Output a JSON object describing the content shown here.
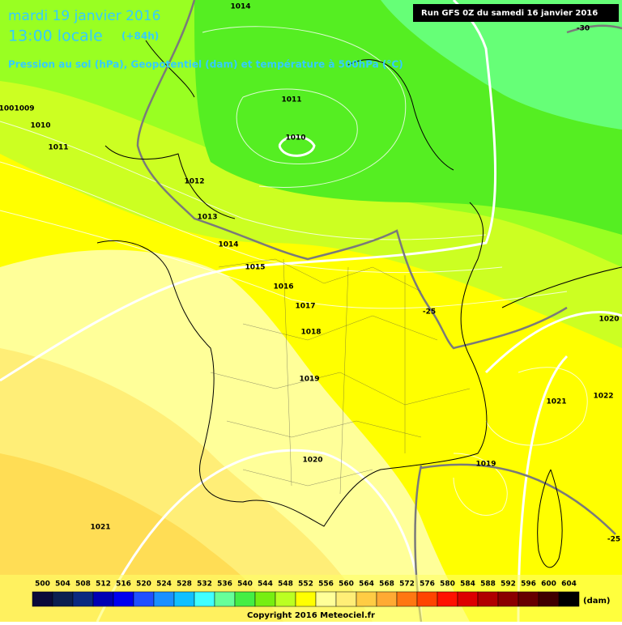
{
  "header": {
    "date": "mardi 19 janvier 2016",
    "time": "13:00 locale",
    "lead": "(+84h)",
    "subtitle": "Pression au sol (hPa), Geopotentiel (dam) et température à 500hPa (°C)",
    "run": "Run GFS 0Z du samedi 16 janvier 2016"
  },
  "isobar_labels": [
    "1014",
    "1011",
    "1010",
    "100",
    "1009",
    "1010",
    "1011",
    "1012",
    "1013",
    "1014",
    "1015",
    "1016",
    "1017",
    "1018",
    "1019",
    "1020",
    "1021",
    "1019",
    "1020",
    "1021",
    "1022"
  ],
  "temperature_labels": [
    "-30",
    "-25",
    "-25"
  ],
  "legend": {
    "unit": "(dam)",
    "items": [
      {
        "label": "500",
        "color": "#0a0a3a"
      },
      {
        "label": "504",
        "color": "#0b2050"
      },
      {
        "label": "508",
        "color": "#0a2a80"
      },
      {
        "label": "512",
        "color": "#0000b4"
      },
      {
        "label": "516",
        "color": "#0000f0"
      },
      {
        "label": "520",
        "color": "#2050ff"
      },
      {
        "label": "524",
        "color": "#1a90ff"
      },
      {
        "label": "528",
        "color": "#10c0ff"
      },
      {
        "label": "532",
        "color": "#40ffff"
      },
      {
        "label": "536",
        "color": "#66ff99"
      },
      {
        "label": "540",
        "color": "#44ee44"
      },
      {
        "label": "544",
        "color": "#77ee11"
      },
      {
        "label": "548",
        "color": "#bbff22"
      },
      {
        "label": "552",
        "color": "#ffff00"
      },
      {
        "label": "556",
        "color": "#ffff99"
      },
      {
        "label": "560",
        "color": "#ffee77"
      },
      {
        "label": "564",
        "color": "#ffcc44"
      },
      {
        "label": "568",
        "color": "#ffaa33"
      },
      {
        "label": "572",
        "color": "#ff7711"
      },
      {
        "label": "576",
        "color": "#ff4400"
      },
      {
        "label": "580",
        "color": "#ff1100"
      },
      {
        "label": "584",
        "color": "#dd0000"
      },
      {
        "label": "588",
        "color": "#b00000"
      },
      {
        "label": "592",
        "color": "#8a0000"
      },
      {
        "label": "596",
        "color": "#660000"
      },
      {
        "label": "600",
        "color": "#400000"
      },
      {
        "label": "604",
        "color": "#000000"
      }
    ]
  },
  "copyright": "Copyright 2016 Meteociel.fr"
}
